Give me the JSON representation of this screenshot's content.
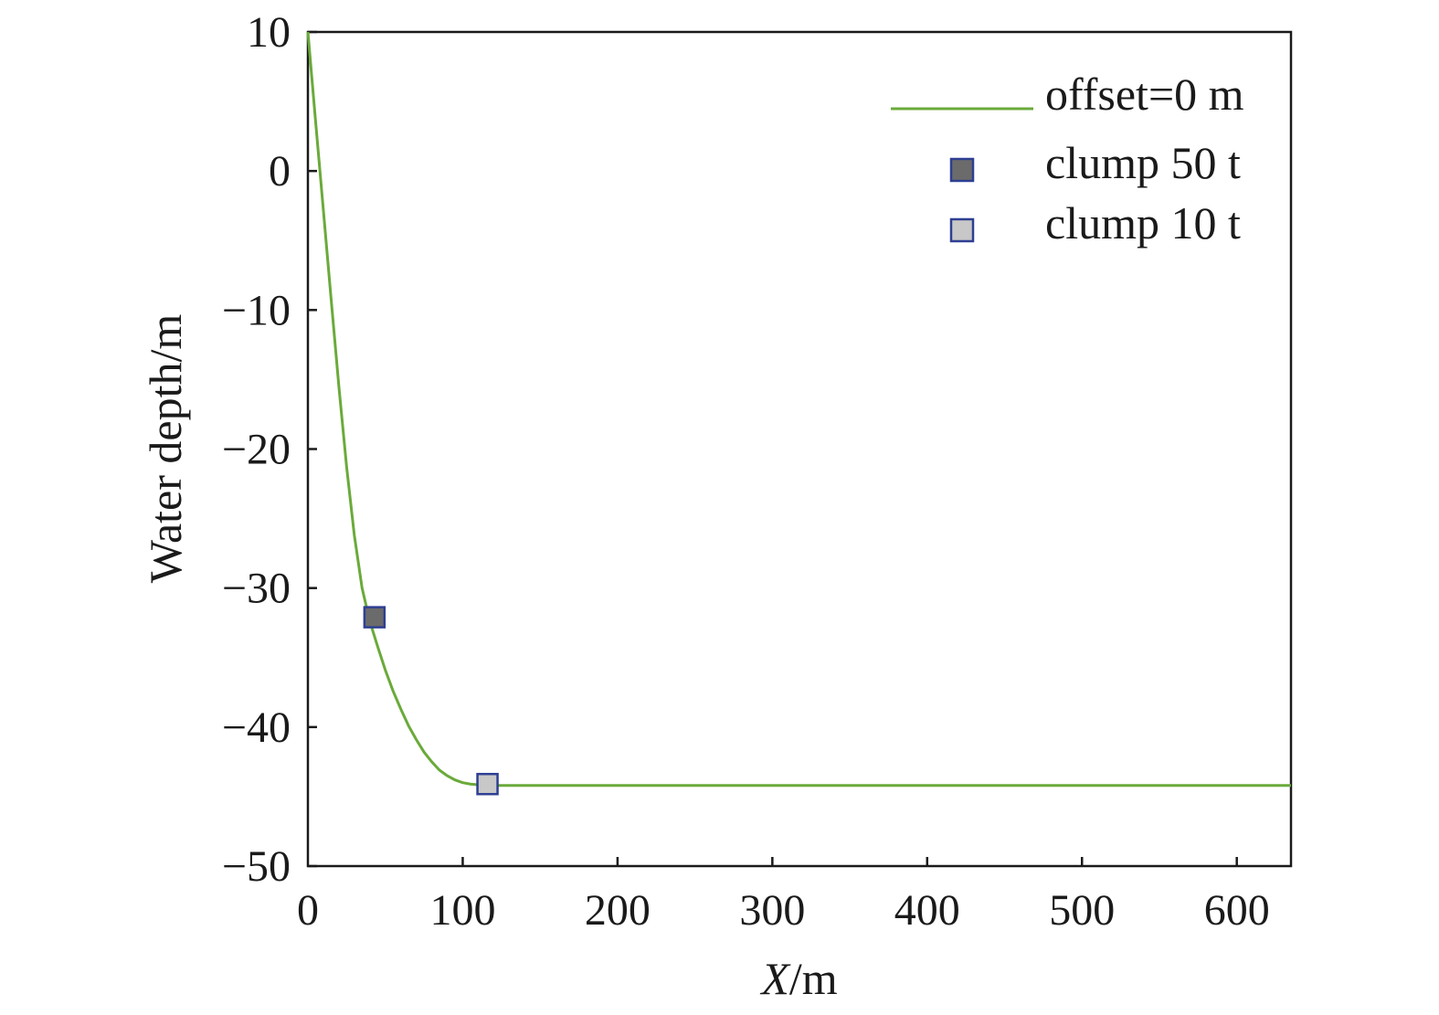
{
  "chart_data": {
    "type": "line",
    "xlabel_italic": "X",
    "xlabel_unit": "/m",
    "ylabel": "Water depth/m",
    "xlim": [
      0,
      635
    ],
    "ylim": [
      -50,
      10
    ],
    "xticks": [
      0,
      100,
      200,
      300,
      400,
      500,
      600
    ],
    "yticks": [
      10,
      0,
      -10,
      -20,
      -30,
      -40,
      -50
    ],
    "xtick_labels": [
      "0",
      "100",
      "200",
      "300",
      "400",
      "500",
      "600"
    ],
    "ytick_labels": [
      "10",
      "0",
      "−10",
      "−20",
      "−30",
      "−40",
      "−50"
    ],
    "grid": false,
    "legend_position": "top-right",
    "series": [
      {
        "name": "offset=0 m",
        "kind": "line",
        "color": "#6aaa3a",
        "x": [
          0,
          5,
          10,
          15,
          20,
          25,
          30,
          35,
          40,
          45,
          50,
          55,
          60,
          65,
          70,
          75,
          80,
          85,
          90,
          95,
          100,
          105,
          110,
          115,
          120,
          200,
          300,
          400,
          500,
          600,
          635
        ],
        "y": [
          10,
          3.5,
          -2.8,
          -9.2,
          -15.5,
          -21.3,
          -26.2,
          -30.0,
          -32.4,
          -34.2,
          -35.9,
          -37.4,
          -38.7,
          -39.9,
          -40.9,
          -41.8,
          -42.5,
          -43.1,
          -43.5,
          -43.8,
          -44.0,
          -44.1,
          -44.15,
          -44.2,
          -44.2,
          -44.2,
          -44.2,
          -44.2,
          -44.2,
          -44.2,
          -44.2
        ]
      },
      {
        "name": "clump 50 t",
        "kind": "marker",
        "fill": "#6b6b6b",
        "stroke": "#2e3f92",
        "x": [
          43
        ],
        "y": [
          -32.1
        ]
      },
      {
        "name": "clump 10 t",
        "kind": "marker",
        "fill": "#c8c8c8",
        "stroke": "#2e3f92",
        "x": [
          116
        ],
        "y": [
          -44.1
        ]
      }
    ]
  }
}
